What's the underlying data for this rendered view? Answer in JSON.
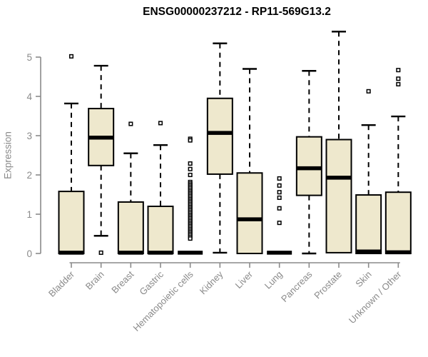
{
  "chart_data": {
    "type": "boxplot",
    "title": "ENSG00000237212 - RP11-569G13.2",
    "ylabel": "Expression",
    "xlabel": "",
    "ylim": [
      0,
      5
    ],
    "yticks": [
      0,
      1,
      2,
      3,
      4,
      5
    ],
    "grid": false,
    "legend": false,
    "colors": {
      "box_fill": "#EEE8CD",
      "box_border": "#000000",
      "median": "#000000",
      "axis": "#8a8a8a",
      "title": "#000000"
    },
    "categories": [
      "Bladder",
      "Brain",
      "Breast",
      "Gastric",
      "Hematopoietic cells",
      "Kidney",
      "Liver",
      "Lung",
      "Pancreas",
      "Prostate",
      "Skin",
      "Unknown / Other"
    ],
    "series": [
      {
        "name": "Bladder",
        "low": 0,
        "q1": 0,
        "median": 0.02,
        "q3": 1.58,
        "high": 3.82,
        "outliers": [
          5.02
        ]
      },
      {
        "name": "Brain",
        "low": 0.45,
        "q1": 2.24,
        "median": 2.95,
        "q3": 3.69,
        "high": 4.78,
        "outliers": [
          0.02
        ]
      },
      {
        "name": "Breast",
        "low": 0,
        "q1": 0,
        "median": 0.02,
        "q3": 1.31,
        "high": 2.55,
        "outliers": [
          3.3
        ]
      },
      {
        "name": "Gastric",
        "low": 0,
        "q1": 0,
        "median": 0.02,
        "q3": 1.2,
        "high": 2.76,
        "outliers": [
          3.32
        ]
      },
      {
        "name": "Hematopoietic cells",
        "low": 0,
        "q1": 0,
        "median": 0.02,
        "q3": 0,
        "high": 0,
        "outliers": [
          2.92,
          2.88,
          2.29,
          2.15,
          2.0,
          1.82,
          1.78,
          1.74,
          1.7,
          1.66,
          1.62,
          1.58,
          1.54,
          1.5,
          1.46,
          1.42,
          1.38,
          1.34,
          1.3,
          1.26,
          1.22,
          1.18,
          1.14,
          1.1,
          1.06,
          1.02,
          0.98,
          0.94,
          0.9,
          0.86,
          0.82,
          0.78,
          0.74,
          0.7,
          0.66,
          0.62,
          0.58,
          0.54,
          0.5,
          0.46,
          0.42,
          0.38
        ]
      },
      {
        "name": "Kidney",
        "low": 0.02,
        "q1": 2.02,
        "median": 3.07,
        "q3": 3.95,
        "high": 5.35,
        "outliers": []
      },
      {
        "name": "Liver",
        "low": 0,
        "q1": 0,
        "median": 0.87,
        "q3": 2.05,
        "high": 4.7,
        "outliers": []
      },
      {
        "name": "Lung",
        "low": 0,
        "q1": 0,
        "median": 0.02,
        "q3": 0,
        "high": 0,
        "outliers": [
          1.91,
          1.73,
          1.56,
          1.42,
          1.15,
          0.78
        ]
      },
      {
        "name": "Pancreas",
        "low": 0,
        "q1": 1.48,
        "median": 2.17,
        "q3": 2.97,
        "high": 4.65,
        "outliers": []
      },
      {
        "name": "Prostate",
        "low": 0,
        "q1": 0.02,
        "median": 1.93,
        "q3": 2.9,
        "high": 5.65,
        "outliers": []
      },
      {
        "name": "Skin",
        "low": 0,
        "q1": 0,
        "median": 0.05,
        "q3": 1.49,
        "high": 3.27,
        "outliers": [
          4.13
        ]
      },
      {
        "name": "Unknown / Other",
        "low": 0,
        "q1": 0,
        "median": 0.03,
        "q3": 1.56,
        "high": 3.49,
        "outliers": [
          4.67,
          4.45,
          4.31
        ]
      }
    ]
  }
}
